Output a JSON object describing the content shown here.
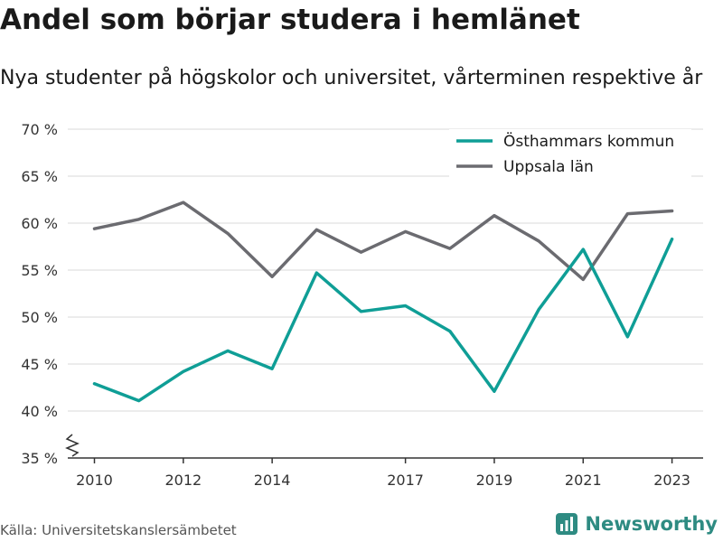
{
  "title": "Andel som börjar studera i hemlänet",
  "subtitle": "Nya studenter på högskolor och universitet, vårterminen respektive år",
  "source": "Källa: Universitetskanslersämbetet",
  "brand": {
    "name": "Newsworthy",
    "icon": "newsworthy-logo-icon"
  },
  "colors": {
    "osthammar": "#0f9e96",
    "uppsala": "#6b6b70",
    "grid": "#d9d9d9"
  },
  "chart_data": {
    "type": "line",
    "title": "Andel som börjar studera i hemlänet",
    "subtitle": "Nya studenter på högskolor och universitet, vårterminen respektive år",
    "x": [
      2010,
      2011,
      2012,
      2013,
      2014,
      2015,
      2016,
      2017,
      2018,
      2019,
      2020,
      2021,
      2022,
      2023
    ],
    "x_tick_values": [
      2010,
      2012,
      2014,
      2017,
      2019,
      2021,
      2023
    ],
    "x_tick_labels": [
      "2010",
      "2012",
      "2014",
      "2017",
      "2019",
      "2021",
      "2023"
    ],
    "xlim": [
      2009.4,
      2023.7
    ],
    "ylim": [
      35,
      70
    ],
    "y_tick_values": [
      35,
      40,
      45,
      50,
      55,
      60,
      65,
      70
    ],
    "y_tick_labels": [
      "35 %",
      "40 %",
      "45 %",
      "50 %",
      "55 %",
      "60 %",
      "65 %",
      "70 %"
    ],
    "axis_break": true,
    "grid": true,
    "legend_position": "top-right",
    "series": [
      {
        "name": "Östhammars kommun",
        "color": "#0f9e96",
        "values": [
          42.9,
          41.1,
          44.2,
          46.4,
          44.5,
          54.7,
          50.6,
          51.2,
          48.5,
          42.1,
          50.8,
          57.2,
          47.9,
          58.3
        ]
      },
      {
        "name": "Uppsala län",
        "color": "#6b6b70",
        "values": [
          59.4,
          60.4,
          62.2,
          58.9,
          54.3,
          59.3,
          56.9,
          59.1,
          57.3,
          60.8,
          58.1,
          54.0,
          61.0,
          61.3
        ]
      }
    ]
  }
}
